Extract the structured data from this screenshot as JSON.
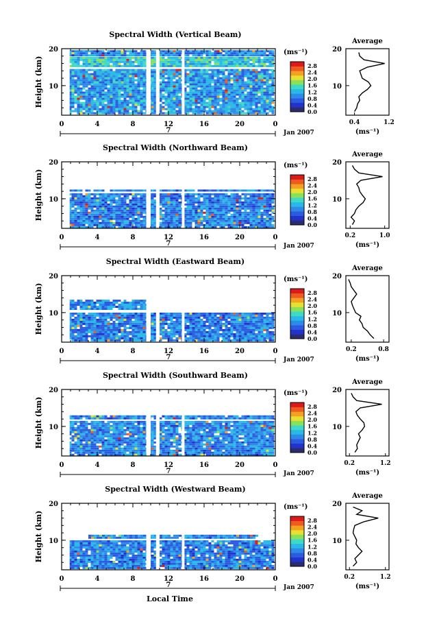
{
  "figure": {
    "date_label": "Jan 2007",
    "day_label": "7",
    "xaxis_label": "Local Time",
    "yaxis_label": "Height (km)",
    "unit_label": "(ms⁻¹)",
    "avg_title": "Average",
    "colorbar_ticks": [
      "2.8",
      "2.4",
      "2.0",
      "1.6",
      "1.2",
      "0.8",
      "0.4",
      "0.0"
    ],
    "colors": [
      "#2b2b6e",
      "#2233cc",
      "#2a5be0",
      "#2e8ae8",
      "#2ab8e8",
      "#3fd9c8",
      "#8be05a",
      "#e8e030",
      "#f4a020",
      "#ee5a20",
      "#dd1a1a"
    ]
  },
  "chart_data": [
    {
      "type": "heatmap",
      "title": "Spectral Width (Vertical Beam)",
      "x_ticks": [
        "0",
        "4",
        "8",
        "12",
        "16",
        "20",
        "0"
      ],
      "y_ticks": [
        "20",
        "10"
      ],
      "xlim": [
        0,
        24
      ],
      "ylim": [
        2,
        20
      ],
      "data_regions": [
        {
          "x": [
            0.5,
            23.6
          ],
          "y": [
            2.5,
            14.5
          ],
          "level": 0.6
        },
        {
          "x": [
            0.5,
            23.6
          ],
          "y": [
            15.2,
            17.8
          ],
          "level": 0.9
        },
        {
          "x": [
            0.5,
            23.6
          ],
          "y": [
            18.0,
            19.6
          ],
          "level": 0.5
        }
      ],
      "gaps_hours": [
        [
          0.5,
          0.9
        ],
        [
          9.5,
          10.0
        ],
        [
          10.6,
          11.0
        ],
        [
          13.5,
          13.8
        ]
      ],
      "average_profile": {
        "xlim": [
          0.2,
          1.2
        ],
        "x_ticks": [
          "0.4",
          "1.2"
        ],
        "height": [
          3,
          4,
          5,
          6,
          7,
          8,
          9,
          10,
          11,
          12,
          13,
          14,
          15,
          16,
          17,
          18,
          19
        ],
        "value": [
          0.4,
          0.45,
          0.47,
          0.52,
          0.5,
          0.58,
          0.7,
          0.78,
          0.72,
          0.58,
          0.55,
          0.52,
          0.7,
          1.1,
          0.62,
          0.52,
          0.5
        ]
      }
    },
    {
      "type": "heatmap",
      "title": "Spectral Width (Northward Beam)",
      "x_ticks": [
        "0",
        "4",
        "8",
        "12",
        "16",
        "20",
        "0"
      ],
      "y_ticks": [
        "20",
        "10"
      ],
      "xlim": [
        0,
        24
      ],
      "ylim": [
        2,
        20
      ],
      "data_regions": [
        {
          "x": [
            0.5,
            23.6
          ],
          "y": [
            2.5,
            11.5
          ],
          "level": 0.45
        },
        {
          "x": [
            0.5,
            23.6
          ],
          "y": [
            12.0,
            12.5
          ],
          "level": 0.5
        }
      ],
      "gaps_hours": [
        [
          0.5,
          0.9
        ],
        [
          9.5,
          10.0
        ],
        [
          10.6,
          11.0
        ],
        [
          13.5,
          13.8
        ]
      ],
      "average_profile": {
        "xlim": [
          0.1,
          1.1
        ],
        "x_ticks": [
          "0.2",
          "1.0"
        ],
        "height": [
          3,
          4,
          5,
          6,
          7,
          8,
          9,
          10,
          11,
          12,
          13,
          14,
          15,
          16,
          17,
          18,
          19
        ],
        "value": [
          0.25,
          0.3,
          0.22,
          0.3,
          0.33,
          0.4,
          0.5,
          0.55,
          0.48,
          0.42,
          0.4,
          0.35,
          0.45,
          0.95,
          0.4,
          0.3,
          0.25
        ]
      }
    },
    {
      "type": "heatmap",
      "title": "Spectral Width (Eastward Beam)",
      "x_ticks": [
        "0",
        "4",
        "8",
        "12",
        "16",
        "20",
        "0"
      ],
      "y_ticks": [
        "20",
        "10"
      ],
      "xlim": [
        0,
        24
      ],
      "ylim": [
        2,
        20
      ],
      "data_regions": [
        {
          "x": [
            0.5,
            23.6
          ],
          "y": [
            2.5,
            10.0
          ],
          "level": 0.45
        },
        {
          "x": [
            0.5,
            9.5
          ],
          "y": [
            11.0,
            13.5
          ],
          "level": 0.5
        }
      ],
      "gaps_hours": [
        [
          0.5,
          0.9
        ],
        [
          9.5,
          10.0
        ],
        [
          10.6,
          11.0
        ],
        [
          13.5,
          13.8
        ]
      ],
      "average_profile": {
        "xlim": [
          0.1,
          0.9
        ],
        "x_ticks": [
          "0.2",
          "0.8"
        ],
        "height": [
          3,
          4,
          5,
          6,
          7,
          8,
          9,
          10,
          11,
          12,
          13,
          14,
          15,
          16,
          17,
          18,
          19
        ],
        "value": [
          0.62,
          0.55,
          0.5,
          0.42,
          0.4,
          0.35,
          0.38,
          0.28,
          0.25,
          0.22,
          0.2,
          0.25,
          0.3,
          0.25,
          0.2,
          0.18,
          0.15
        ]
      }
    },
    {
      "type": "heatmap",
      "title": "Spectral Width (Southward Beam)",
      "x_ticks": [
        "0",
        "4",
        "8",
        "12",
        "16",
        "20",
        "0"
      ],
      "y_ticks": [
        "20",
        "10"
      ],
      "xlim": [
        0,
        24
      ],
      "ylim": [
        2,
        20
      ],
      "data_regions": [
        {
          "x": [
            0.5,
            23.6
          ],
          "y": [
            2.5,
            11.5
          ],
          "level": 0.5
        },
        {
          "x": [
            0.5,
            23.6
          ],
          "y": [
            12.0,
            13.0
          ],
          "level": 0.45
        }
      ],
      "gaps_hours": [
        [
          0.5,
          0.9
        ],
        [
          9.5,
          10.0
        ],
        [
          10.6,
          11.0
        ],
        [
          13.5,
          13.8
        ]
      ],
      "average_profile": {
        "xlim": [
          0.1,
          1.3
        ],
        "x_ticks": [
          "0.2",
          "1.2"
        ],
        "height": [
          3,
          4,
          5,
          6,
          7,
          8,
          9,
          10,
          11,
          12,
          13,
          14,
          15,
          16,
          17,
          18,
          19
        ],
        "value": [
          0.35,
          0.42,
          0.4,
          0.45,
          0.5,
          0.45,
          0.55,
          0.62,
          0.6,
          0.5,
          0.42,
          0.38,
          0.5,
          1.1,
          0.4,
          0.3,
          0.25
        ]
      }
    },
    {
      "type": "heatmap",
      "title": "Spectral Width (Westward Beam)",
      "x_ticks": [
        "0",
        "4",
        "8",
        "12",
        "16",
        "20",
        "0"
      ],
      "y_ticks": [
        "20",
        "10"
      ],
      "xlim": [
        0,
        24
      ],
      "ylim": [
        2,
        20
      ],
      "data_regions": [
        {
          "x": [
            0.5,
            23.6
          ],
          "y": [
            2.5,
            10.0
          ],
          "level": 0.45
        },
        {
          "x": [
            3.0,
            22.0
          ],
          "y": [
            10.5,
            11.5
          ],
          "level": 0.5
        }
      ],
      "gaps_hours": [
        [
          0.5,
          0.9
        ],
        [
          9.5,
          10.0
        ],
        [
          10.6,
          11.0
        ],
        [
          13.5,
          13.8
        ]
      ],
      "average_profile": {
        "xlim": [
          0.1,
          1.3
        ],
        "x_ticks": [
          "0.2",
          "1.2"
        ],
        "height": [
          3,
          4,
          5,
          6,
          7,
          8,
          9,
          10,
          11,
          12,
          13,
          14,
          15,
          16,
          17,
          18,
          19
        ],
        "value": [
          0.3,
          0.4,
          0.35,
          0.45,
          0.55,
          0.45,
          0.38,
          0.4,
          0.35,
          0.3,
          0.32,
          0.35,
          0.6,
          1.0,
          0.4,
          0.55,
          0.3
        ]
      }
    }
  ]
}
